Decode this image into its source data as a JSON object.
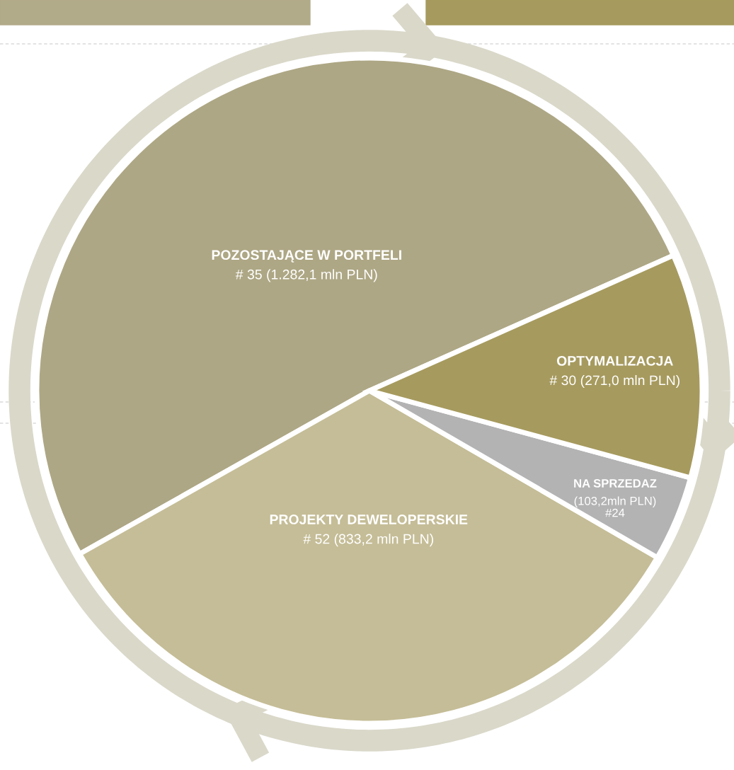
{
  "chart_data": {
    "type": "pie",
    "categories": [
      "POZOSTAJĄCE W PORTFELI",
      "PROJEKTY DEWELOPERSKIE",
      "NA SPRZEDAZ",
      "OPTYMALIZACJA"
    ],
    "values": [
      1282.1,
      833.2,
      103.2,
      271.0
    ],
    "colors": [
      "#aea785",
      "#c5bd97",
      "#b3b3b3",
      "#a69a5e"
    ],
    "value_labels": [
      "# 35 (1.282,1 mln PLN)",
      "# 52 (833,2 mln PLN)",
      "(103,2mln PLN)\n#24",
      "# 30 (271,0 mln PLN)"
    ]
  }
}
